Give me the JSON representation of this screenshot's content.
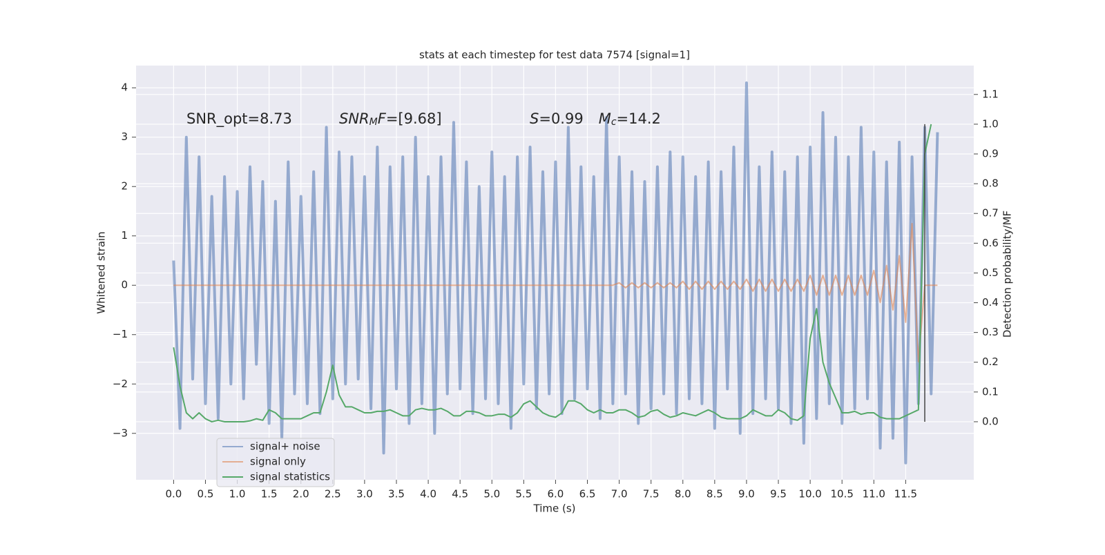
{
  "chart_data": {
    "type": "line",
    "title": "stats at each timestep for test data 7574 [signal=1]",
    "xlabel": "Time (s)",
    "ylabel": "Whitened strain",
    "y2label": "Detection probability/MF",
    "annotations": [
      [
        {
          "text": "SNR_opt=8.73",
          "style": "normal"
        }
      ],
      [
        {
          "text": "SNR",
          "style": "italic"
        },
        {
          "text": "M",
          "style": "italic-sub"
        },
        {
          "text": "F",
          "style": "italic"
        },
        {
          "text": "=[9.68]",
          "style": "normal"
        }
      ],
      [
        {
          "text": "S",
          "style": "italic"
        },
        {
          "text": "=0.99",
          "style": "normal"
        },
        {
          "text": "M",
          "style": "italic-gap"
        },
        {
          "text": "c",
          "style": "italic-sub"
        },
        {
          "text": "=14.2",
          "style": "normal"
        }
      ]
    ],
    "x": [
      0.0,
      0.1,
      0.2,
      0.3,
      0.4,
      0.5,
      0.6,
      0.7,
      0.8,
      0.9,
      1.0,
      1.1,
      1.2,
      1.3,
      1.4,
      1.5,
      1.6,
      1.7,
      1.8,
      1.9,
      2.0,
      2.1,
      2.2,
      2.3,
      2.4,
      2.5,
      2.6,
      2.7,
      2.8,
      2.9,
      3.0,
      3.1,
      3.2,
      3.3,
      3.4,
      3.5,
      3.6,
      3.7,
      3.8,
      3.9,
      4.0,
      4.1,
      4.2,
      4.3,
      4.4,
      4.5,
      4.6,
      4.7,
      4.8,
      4.9,
      5.0,
      5.1,
      5.2,
      5.3,
      5.4,
      5.5,
      5.6,
      5.7,
      5.8,
      5.9,
      6.0,
      6.1,
      6.2,
      6.3,
      6.4,
      6.5,
      6.6,
      6.7,
      6.8,
      6.9,
      7.0,
      7.1,
      7.2,
      7.3,
      7.4,
      7.5,
      7.6,
      7.7,
      7.8,
      7.9,
      8.0,
      8.1,
      8.2,
      8.3,
      8.4,
      8.5,
      8.6,
      8.7,
      8.8,
      8.9,
      9.0,
      9.1,
      9.2,
      9.3,
      9.4,
      9.5,
      9.6,
      9.7,
      9.8,
      9.9,
      10.0,
      10.1,
      10.2,
      10.3,
      10.4,
      10.5,
      10.6,
      10.7,
      10.8,
      10.9,
      11.0,
      11.1,
      11.2,
      11.3,
      11.4,
      11.5,
      11.6,
      11.7,
      11.8,
      11.9,
      12.0
    ],
    "series": [
      {
        "name": "signal+ noise",
        "color": "#4c72b0",
        "opacity": 0.55,
        "width": 4,
        "values": [
          0.5,
          -2.9,
          3.0,
          -1.9,
          2.6,
          -2.4,
          1.8,
          -2.7,
          2.2,
          -2.0,
          1.9,
          -2.3,
          2.4,
          -1.6,
          2.1,
          -2.8,
          1.7,
          -3.1,
          2.5,
          -2.2,
          1.8,
          -2.4,
          2.3,
          -2.6,
          3.2,
          -2.3,
          2.7,
          -2.0,
          2.6,
          -1.9,
          2.2,
          -2.5,
          2.8,
          -3.4,
          2.4,
          -2.1,
          2.6,
          -2.8,
          3.0,
          -2.4,
          2.2,
          -3.0,
          2.6,
          -2.2,
          3.3,
          -2.1,
          2.5,
          -2.6,
          2.0,
          -2.3,
          2.7,
          -2.4,
          2.2,
          -2.9,
          2.6,
          -2.0,
          2.8,
          -2.5,
          2.3,
          -2.2,
          2.5,
          -2.6,
          3.2,
          -2.3,
          2.4,
          -2.1,
          2.2,
          -2.7,
          3.4,
          -2.4,
          2.6,
          -2.2,
          2.3,
          -2.8,
          2.1,
          -2.5,
          2.4,
          -2.2,
          2.7,
          -2.6,
          2.6,
          -2.3,
          2.2,
          -2.4,
          2.5,
          -2.9,
          2.3,
          -2.1,
          2.8,
          -3.0,
          4.1,
          -2.6,
          2.4,
          -2.3,
          2.7,
          -2.5,
          2.3,
          -2.8,
          2.6,
          -3.2,
          2.8,
          -2.7,
          3.5,
          -2.4,
          3.0,
          -2.8,
          2.6,
          -2.5,
          3.2,
          -2.3,
          2.7,
          -3.3,
          2.5,
          -3.1,
          2.9,
          -3.6,
          2.6,
          -2.4,
          3.2,
          -2.2,
          3.1
        ]
      },
      {
        "name": "signal only",
        "color": "#dd8452",
        "opacity": 0.6,
        "width": 2,
        "values": [
          0,
          0,
          0,
          0,
          0,
          0,
          0,
          0,
          0,
          0,
          0,
          0,
          0,
          0,
          0,
          0,
          0,
          0,
          0,
          0,
          0,
          0,
          0,
          0,
          0,
          0,
          0,
          0,
          0,
          0,
          0,
          0,
          0,
          0,
          0,
          0,
          0,
          0,
          0,
          0,
          0,
          0,
          0,
          0,
          0,
          0,
          0,
          0,
          0,
          0,
          0,
          0,
          0,
          0,
          0,
          0,
          0,
          0,
          0,
          0,
          0,
          0,
          0,
          0,
          0,
          0,
          0,
          0,
          0,
          0,
          0.05,
          -0.05,
          0.05,
          -0.05,
          0.05,
          -0.05,
          0.05,
          -0.05,
          0.05,
          -0.05,
          0.08,
          -0.08,
          0.08,
          -0.08,
          0.08,
          -0.08,
          0.08,
          -0.08,
          0.08,
          -0.08,
          0.12,
          -0.12,
          0.12,
          -0.12,
          0.12,
          -0.12,
          0.12,
          -0.12,
          0.12,
          -0.12,
          0.2,
          -0.2,
          0.2,
          -0.2,
          0.2,
          -0.2,
          0.2,
          -0.2,
          0.2,
          -0.2,
          0.3,
          -0.35,
          0.4,
          -0.5,
          0.6,
          -0.75,
          1.25,
          -1.55,
          0,
          0,
          0
        ]
      },
      {
        "name": "signal statistics",
        "color": "#55a868",
        "opacity": 1,
        "width": 2,
        "axis": "y2",
        "values": [
          0.25,
          0.12,
          0.03,
          0.01,
          0.03,
          0.01,
          0.0,
          0.005,
          0.0,
          0.0,
          0.0,
          0.0,
          0.003,
          0.01,
          0.005,
          0.04,
          0.03,
          0.01,
          0.01,
          0.01,
          0.01,
          0.02,
          0.03,
          0.03,
          0.1,
          0.19,
          0.09,
          0.05,
          0.05,
          0.04,
          0.03,
          0.03,
          0.035,
          0.035,
          0.04,
          0.03,
          0.02,
          0.02,
          0.04,
          0.045,
          0.04,
          0.04,
          0.045,
          0.035,
          0.02,
          0.02,
          0.035,
          0.035,
          0.03,
          0.02,
          0.02,
          0.025,
          0.025,
          0.015,
          0.03,
          0.06,
          0.07,
          0.05,
          0.03,
          0.02,
          0.015,
          0.03,
          0.07,
          0.07,
          0.06,
          0.04,
          0.03,
          0.04,
          0.03,
          0.03,
          0.04,
          0.04,
          0.03,
          0.015,
          0.02,
          0.035,
          0.04,
          0.025,
          0.015,
          0.02,
          0.03,
          0.025,
          0.02,
          0.03,
          0.04,
          0.03,
          0.015,
          0.01,
          0.01,
          0.01,
          0.02,
          0.04,
          0.03,
          0.02,
          0.02,
          0.04,
          0.03,
          0.01,
          0.005,
          0.02,
          0.28,
          0.38,
          0.2,
          0.13,
          0.08,
          0.03,
          0.03,
          0.035,
          0.025,
          0.03,
          0.03,
          0.015,
          0.01,
          0.01,
          0.01,
          0.02,
          0.03,
          0.04,
          0.9,
          1.0,
          null
        ]
      }
    ],
    "vline": {
      "x": 11.8,
      "ymin": 0,
      "ymax": 1.0,
      "axis": "y2",
      "color": "#444444"
    },
    "xlim": [
      -0.59,
      12.57
    ],
    "ylim": [
      -3.94,
      4.45
    ],
    "y2lim": [
      -0.195,
      1.197
    ],
    "xticks": [
      {
        "value": 0,
        "label": "0.0"
      },
      {
        "value": 0.5,
        "label": "0.5"
      },
      {
        "value": 1,
        "label": "1.0"
      },
      {
        "value": 1.5,
        "label": "1.5"
      },
      {
        "value": 2,
        "label": "2.0"
      },
      {
        "value": 2.5,
        "label": "2.5"
      },
      {
        "value": 3,
        "label": "3.0"
      },
      {
        "value": 3.5,
        "label": "3.5"
      },
      {
        "value": 4,
        "label": "4.0"
      },
      {
        "value": 4.5,
        "label": "4.5"
      },
      {
        "value": 5,
        "label": "5.0"
      },
      {
        "value": 5.5,
        "label": "5.5"
      },
      {
        "value": 6,
        "label": "6.0"
      },
      {
        "value": 6.5,
        "label": "6.5"
      },
      {
        "value": 7,
        "label": "7.0"
      },
      {
        "value": 7.5,
        "label": "7.5"
      },
      {
        "value": 8,
        "label": "8.0"
      },
      {
        "value": 8.5,
        "label": "8.5"
      },
      {
        "value": 9,
        "label": "9.0"
      },
      {
        "value": 9.5,
        "label": "9.5"
      },
      {
        "value": 10,
        "label": "10.0"
      },
      {
        "value": 10.5,
        "label": "10.5"
      },
      {
        "value": 11,
        "label": "11.0"
      },
      {
        "value": 11.5,
        "label": "11.5"
      }
    ],
    "yticks": [
      {
        "value": -3,
        "label": "−3"
      },
      {
        "value": -2,
        "label": "−2"
      },
      {
        "value": -1,
        "label": "−1"
      },
      0,
      1,
      2,
      3,
      4
    ],
    "y2ticks": [
      {
        "value": 0,
        "label": "0.0"
      },
      {
        "value": 0.1,
        "label": "0.1"
      },
      {
        "value": 0.2,
        "label": "0.2"
      },
      {
        "value": 0.3,
        "label": "0.3"
      },
      {
        "value": 0.4,
        "label": "0.4"
      },
      {
        "value": 0.5,
        "label": "0.5"
      },
      {
        "value": 0.6,
        "label": "0.6"
      },
      {
        "value": 0.7,
        "label": "0.7"
      },
      {
        "value": 0.8,
        "label": "0.8"
      },
      {
        "value": 0.9,
        "label": "0.9"
      },
      {
        "value": 1.0,
        "label": "1.0"
      },
      {
        "value": 1.1,
        "label": "1.1"
      }
    ],
    "grid": true,
    "legend": "lower left",
    "background": "#eaeaf2"
  }
}
